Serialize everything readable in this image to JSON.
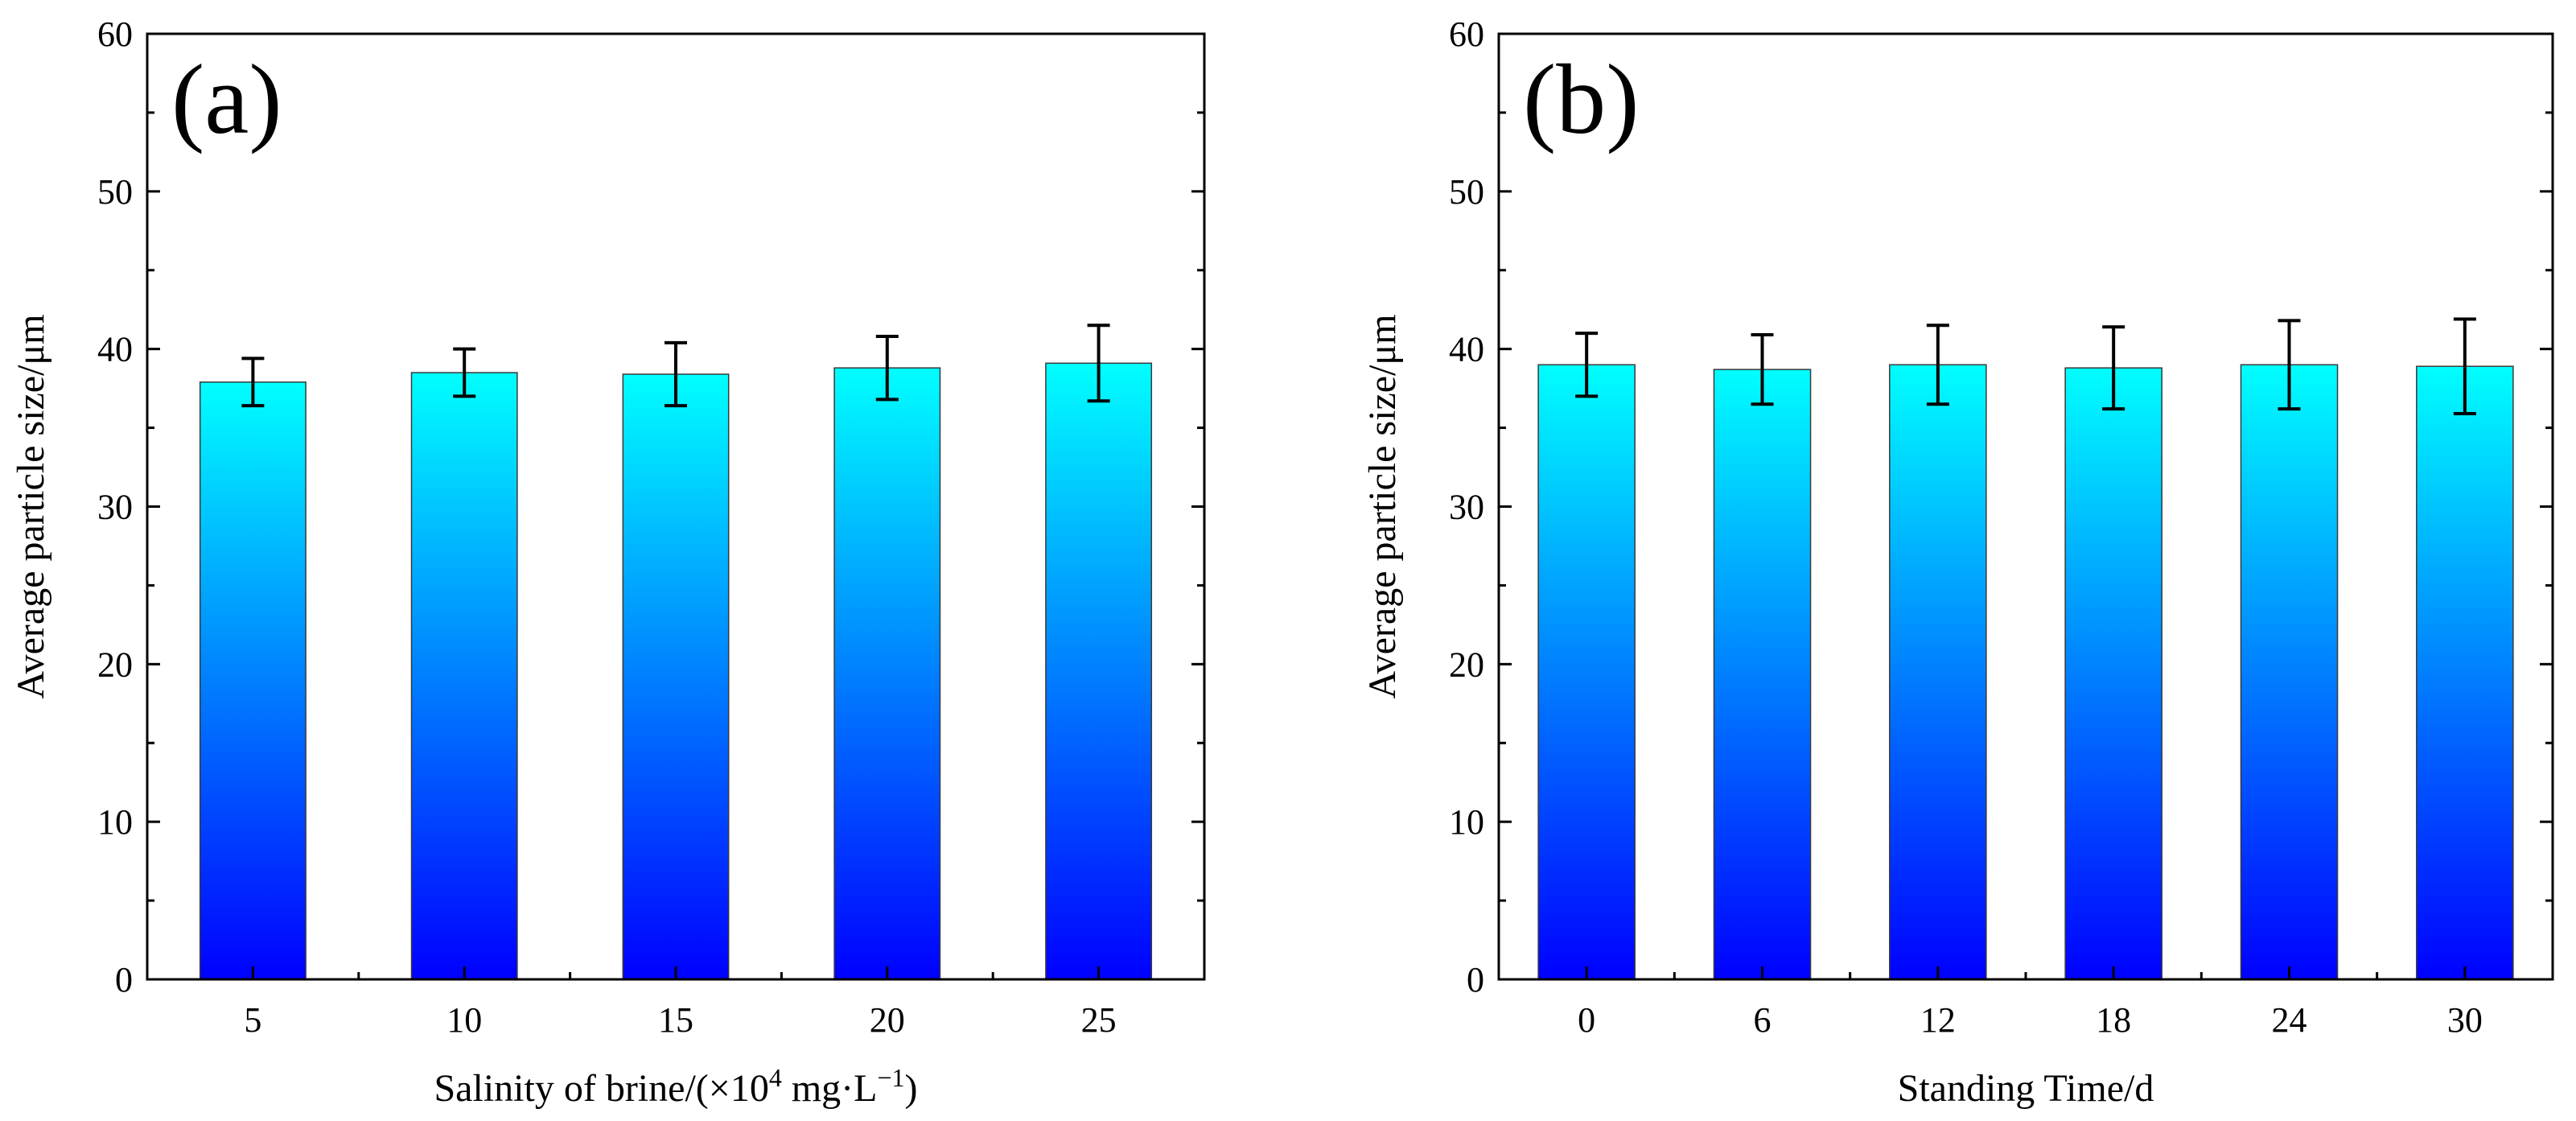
{
  "colors": {
    "bar_top": "#00ffff",
    "bar_bottom": "#0000ff",
    "axis": "#000000",
    "error_bar": "#000000"
  },
  "chart_data": [
    {
      "panel": "(a)",
      "type": "bar",
      "categories": [
        "5",
        "10",
        "15",
        "20",
        "25"
      ],
      "values": [
        37.9,
        38.5,
        38.4,
        38.8,
        39.1
      ],
      "errors": [
        1.5,
        1.5,
        2.0,
        2.0,
        2.4
      ],
      "xlabel": "Salinity of brine/(×10",
      "xlabel_sup": "4",
      "xlabel_rest": " mg·L",
      "xlabel_sup2": "−1",
      "xlabel_end": ")",
      "ylabel": "Average particle size/μm",
      "ylim": [
        0,
        60
      ],
      "yticks": [
        "0",
        "10",
        "20",
        "30",
        "40",
        "50",
        "60"
      ],
      "grid": false,
      "legend": "none"
    },
    {
      "panel": "(b)",
      "type": "bar",
      "categories": [
        "0",
        "6",
        "12",
        "18",
        "24",
        "30"
      ],
      "values": [
        39.0,
        38.7,
        39.0,
        38.8,
        39.0,
        38.9
      ],
      "errors": [
        2.0,
        2.2,
        2.5,
        2.6,
        2.8,
        3.0
      ],
      "xlabel": "Standing Time/d",
      "ylabel": "Average particle size/μm",
      "ylim": [
        0,
        60
      ],
      "yticks": [
        "0",
        "10",
        "20",
        "30",
        "40",
        "50",
        "60"
      ],
      "grid": false,
      "legend": "none"
    }
  ]
}
